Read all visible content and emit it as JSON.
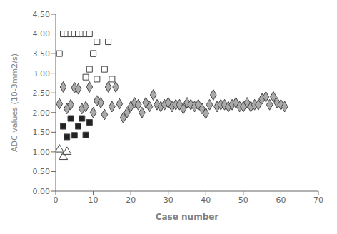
{
  "chart_data": {
    "type": "scatter",
    "xlabel": "Case number",
    "ylabel": "ADC values (10-3mm2/s)",
    "xlim": [
      0,
      70
    ],
    "ylim": [
      0.0,
      4.5
    ],
    "xticks": [
      0,
      10,
      20,
      30,
      40,
      50,
      60,
      70
    ],
    "yticks": [
      {
        "value": 0.0,
        "label": "0.00"
      },
      {
        "value": 0.5,
        "label": "0.50"
      },
      {
        "value": 1.0,
        "label": "1.00"
      },
      {
        "value": 1.5,
        "label": "1.50"
      },
      {
        "value": 2.0,
        "label": "2.00"
      },
      {
        "value": 2.5,
        "label": "2.50"
      },
      {
        "value": 3.0,
        "label": "3.00"
      },
      {
        "value": 3.5,
        "label": "3.50"
      },
      {
        "value": 4.0,
        "label": "4.00"
      },
      {
        "value": 4.5,
        "label": "4.50"
      }
    ],
    "grid": false,
    "series": [
      {
        "color": "#aaaaaa",
        "marker": "diamond",
        "x": [
          1,
          2,
          3,
          4,
          5,
          6,
          7,
          8,
          9,
          10,
          11,
          12,
          13,
          14,
          15,
          16,
          17,
          18,
          19,
          20,
          21,
          22,
          23,
          24,
          25,
          26,
          27,
          28,
          29,
          30,
          31,
          32,
          33,
          34,
          35,
          36,
          37,
          38,
          39,
          40,
          41,
          42,
          43,
          44,
          45,
          46,
          47,
          48,
          49,
          50,
          51,
          52,
          53,
          54,
          55,
          56,
          57,
          58,
          59,
          60,
          61
        ],
        "values": [
          2.22,
          2.65,
          2.1,
          2.2,
          2.63,
          2.6,
          2.1,
          2.15,
          2.65,
          2.0,
          2.3,
          2.25,
          1.95,
          2.65,
          2.15,
          2.65,
          2.22,
          1.87,
          2.0,
          2.15,
          2.25,
          2.2,
          2.0,
          2.25,
          2.15,
          2.45,
          2.2,
          2.15,
          2.2,
          2.25,
          2.15,
          2.2,
          2.2,
          2.1,
          2.25,
          2.2,
          2.15,
          2.2,
          2.1,
          1.98,
          2.2,
          2.45,
          2.15,
          2.2,
          2.2,
          2.15,
          2.2,
          2.25,
          2.15,
          2.15,
          2.25,
          2.15,
          2.2,
          2.2,
          2.35,
          2.4,
          2.2,
          2.4,
          2.25,
          2.2,
          2.15
        ]
      },
      {
        "color": "white",
        "marker": "square",
        "x": [
          1,
          2,
          3,
          4,
          5,
          6,
          7,
          8,
          9,
          10,
          11,
          14
        ],
        "values": [
          3.5,
          4.0,
          4.0,
          4.0,
          4.0,
          4.0,
          4.0,
          4.0,
          4.0,
          3.5,
          3.8,
          3.8
        ]
      },
      {
        "color": "white",
        "marker": "square",
        "x": [
          8,
          9,
          10,
          11,
          13,
          15
        ],
        "values": [
          2.9,
          3.1,
          3.5,
          2.85,
          3.1,
          2.85
        ]
      },
      {
        "color": "#222222",
        "marker": "square",
        "x": [
          2,
          3,
          4,
          5,
          6,
          7,
          8,
          9
        ],
        "values": [
          1.65,
          1.38,
          1.85,
          1.42,
          1.65,
          1.85,
          1.43,
          1.75
        ]
      },
      {
        "color": "white",
        "marker": "triangle",
        "x": [
          1,
          2,
          3
        ],
        "values": [
          1.06,
          0.87,
          1.0
        ]
      }
    ]
  }
}
